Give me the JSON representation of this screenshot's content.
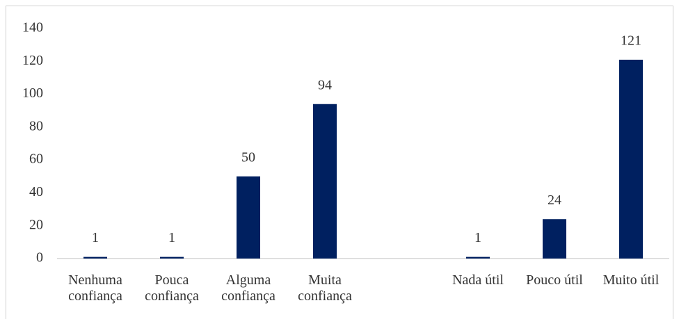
{
  "chart_data": {
    "type": "bar",
    "categories": [
      "Nenhuma confiança",
      "Pouca confiança",
      "Alguma confiança",
      "Muita confiança",
      null,
      "Nada útil",
      "Pouco útil",
      "Muito útil"
    ],
    "values": [
      1,
      1,
      50,
      94,
      null,
      1,
      24,
      121
    ],
    "color": "#002060",
    "ylim": [
      0,
      140
    ],
    "yticks": [
      0,
      20,
      40,
      60,
      80,
      100,
      120,
      140
    ],
    "grid": false,
    "data_labels": true
  }
}
